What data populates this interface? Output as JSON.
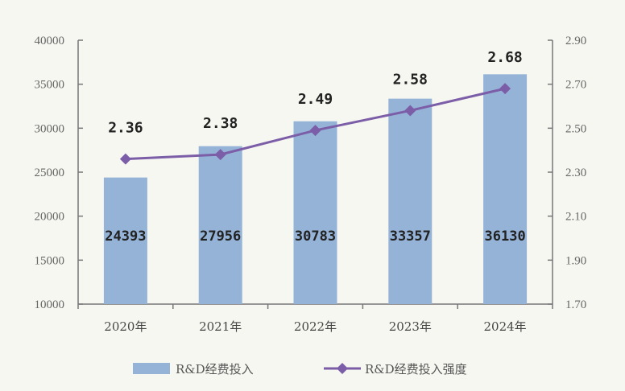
{
  "chart_data": {
    "type": "bar+line",
    "categories": [
      "2020年",
      "2021年",
      "2022年",
      "2023年",
      "2024年"
    ],
    "series": [
      {
        "name": "R&D经费投入",
        "type": "bar",
        "axis": "left",
        "values": [
          24393,
          27956,
          30783,
          33357,
          36130
        ],
        "labels": [
          "24393",
          "27956",
          "30783",
          "33357",
          "36130"
        ],
        "color": "#95b3d7"
      },
      {
        "name": "R&D经费投入强度",
        "type": "line",
        "axis": "right",
        "values": [
          2.36,
          2.38,
          2.49,
          2.58,
          2.68
        ],
        "labels": [
          "2.36",
          "2.38",
          "2.49",
          "2.58",
          "2.68"
        ],
        "color": "#7b5ea7"
      }
    ],
    "left_axis": {
      "range": [
        10000,
        40000
      ],
      "ticks": [
        "10000",
        "15000",
        "20000",
        "25000",
        "30000",
        "35000",
        "40000"
      ]
    },
    "right_axis": {
      "range": [
        1.7,
        2.9
      ],
      "ticks": [
        "1.70",
        "1.90",
        "2.10",
        "2.30",
        "2.50",
        "2.70",
        "2.90"
      ]
    },
    "grid": false,
    "legend_position": "bottom",
    "title": "",
    "xlabel": "",
    "ylabel": ""
  }
}
